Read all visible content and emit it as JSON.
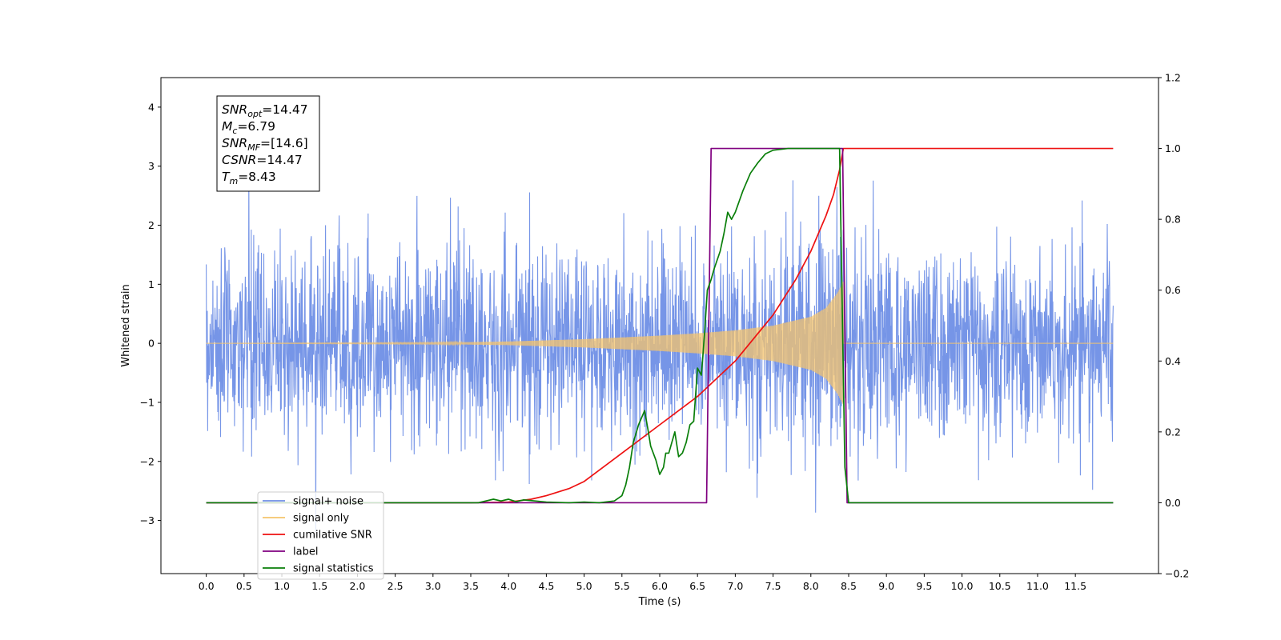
{
  "chart_data": {
    "type": "line",
    "xlabel": "Time (s)",
    "ylabel_left": "Whitened strain",
    "ylabel_right": "",
    "xlim": [
      -0.6,
      12.6
    ],
    "ylim_left": [
      -3.9,
      4.5
    ],
    "ylim_right": [
      -0.2,
      1.2
    ],
    "x_ticks": [
      0.0,
      0.5,
      1.0,
      1.5,
      2.0,
      2.5,
      3.0,
      3.5,
      4.0,
      4.5,
      5.0,
      5.5,
      6.0,
      6.5,
      7.0,
      7.5,
      8.0,
      8.5,
      9.0,
      9.5,
      10.0,
      10.5,
      11.0,
      11.5
    ],
    "x_tick_labels": [
      "0.0",
      "0.5",
      "1.0",
      "1.5",
      "2.0",
      "2.5",
      "3.0",
      "3.5",
      "4.0",
      "4.5",
      "5.0",
      "5.5",
      "6.0",
      "6.5",
      "7.0",
      "7.5",
      "8.0",
      "8.5",
      "9.0",
      "9.5",
      "10.0",
      "10.5",
      "11.0",
      "11.5"
    ],
    "y_ticks_left": [
      -3,
      -2,
      -1,
      0,
      1,
      2,
      3,
      4
    ],
    "y_tick_labels_left": [
      "−3",
      "−2",
      "−1",
      "0",
      "1",
      "2",
      "3",
      "4"
    ],
    "y_ticks_right": [
      -0.2,
      0.0,
      0.2,
      0.4,
      0.6,
      0.8,
      1.0,
      1.2
    ],
    "y_tick_labels_right": [
      "−0.2",
      "0.0",
      "0.2",
      "0.4",
      "0.6",
      "0.8",
      "1.0",
      "1.2"
    ],
    "grid": false,
    "legend_position": "lower-left",
    "legend": [
      {
        "label": "signal+ noise",
        "color": "#6f8fe6"
      },
      {
        "label": "signal only",
        "color": "#f5c46c"
      },
      {
        "label": "cumilative SNR",
        "color": "#ee1111"
      },
      {
        "label": "label",
        "color": "#800080"
      },
      {
        "label": "signal statistics",
        "color": "#0a7f0a"
      }
    ],
    "info_box": {
      "position": "top-left",
      "lines": [
        {
          "sym": "SNR",
          "sub": "opt",
          "val": "=14.47"
        },
        {
          "sym": "M",
          "sub": "c",
          "val": "=6.79"
        },
        {
          "sym": "SNR",
          "sub": "MF",
          "val": "=[14.6]"
        },
        {
          "sym": "CSNR",
          "sub": "",
          "val": "=14.47"
        },
        {
          "sym": "T",
          "sub": "m",
          "val": "=8.43"
        }
      ]
    },
    "series": [
      {
        "name": "signal+ noise",
        "axis": "left",
        "color": "#6f8fe6",
        "x_range": [
          0.0,
          12.0
        ],
        "typical_range": [
          -1.5,
          1.5
        ],
        "extremes_approx": [
          -3.5,
          3.6
        ]
      },
      {
        "name": "signal only",
        "axis": "left",
        "color": "#f5c46c",
        "x_range": [
          0.0,
          8.43
        ],
        "envelope": {
          "x": [
            0.0,
            3.0,
            4.0,
            5.0,
            6.0,
            6.5,
            7.0,
            7.5,
            8.0,
            8.2,
            8.35,
            8.43
          ],
          "amplitude": [
            0.0,
            0.01,
            0.03,
            0.07,
            0.13,
            0.17,
            0.22,
            0.3,
            0.45,
            0.6,
            0.85,
            1.05
          ]
        }
      },
      {
        "name": "cumilative SNR",
        "axis": "right",
        "color": "#ee1111",
        "x": [
          0.0,
          3.5,
          4.0,
          4.3,
          4.5,
          4.8,
          5.0,
          5.5,
          6.0,
          6.5,
          7.0,
          7.5,
          7.8,
          8.0,
          8.2,
          8.3,
          8.38,
          8.43,
          8.45,
          12.0
        ],
        "y": [
          0.0,
          0.0,
          0.002,
          0.01,
          0.02,
          0.04,
          0.06,
          0.14,
          0.22,
          0.3,
          0.4,
          0.53,
          0.63,
          0.71,
          0.81,
          0.87,
          0.94,
          1.0,
          1.0,
          1.0
        ]
      },
      {
        "name": "label",
        "axis": "right",
        "color": "#800080",
        "x": [
          0.0,
          6.62,
          6.68,
          8.42,
          8.48,
          12.0
        ],
        "y": [
          0.0,
          0.0,
          1.0,
          1.0,
          0.0,
          0.0
        ]
      },
      {
        "name": "signal statistics",
        "axis": "right",
        "color": "#0a7f0a",
        "x": [
          0.0,
          3.6,
          3.8,
          3.9,
          4.0,
          4.1,
          4.2,
          4.5,
          4.8,
          5.0,
          5.2,
          5.4,
          5.5,
          5.55,
          5.6,
          5.65,
          5.72,
          5.8,
          5.85,
          5.88,
          5.95,
          6.0,
          6.05,
          6.08,
          6.12,
          6.2,
          6.25,
          6.3,
          6.35,
          6.4,
          6.45,
          6.5,
          6.55,
          6.57,
          6.6,
          6.63,
          6.68,
          6.72,
          6.8,
          6.85,
          6.9,
          6.95,
          7.0,
          7.05,
          7.1,
          7.2,
          7.3,
          7.4,
          7.5,
          7.7,
          8.0,
          8.38,
          8.45,
          8.5,
          12.0
        ],
        "y": [
          0.0,
          0.0,
          0.01,
          0.005,
          0.01,
          0.003,
          0.008,
          0.002,
          0.0,
          0.002,
          0.0,
          0.005,
          0.02,
          0.05,
          0.1,
          0.17,
          0.22,
          0.26,
          0.2,
          0.16,
          0.12,
          0.08,
          0.1,
          0.14,
          0.14,
          0.2,
          0.13,
          0.14,
          0.17,
          0.22,
          0.23,
          0.38,
          0.36,
          0.41,
          0.5,
          0.6,
          0.63,
          0.66,
          0.71,
          0.76,
          0.82,
          0.8,
          0.82,
          0.85,
          0.88,
          0.93,
          0.96,
          0.985,
          0.995,
          1.0,
          1.0,
          1.0,
          0.1,
          0.0,
          0.0
        ]
      }
    ]
  }
}
